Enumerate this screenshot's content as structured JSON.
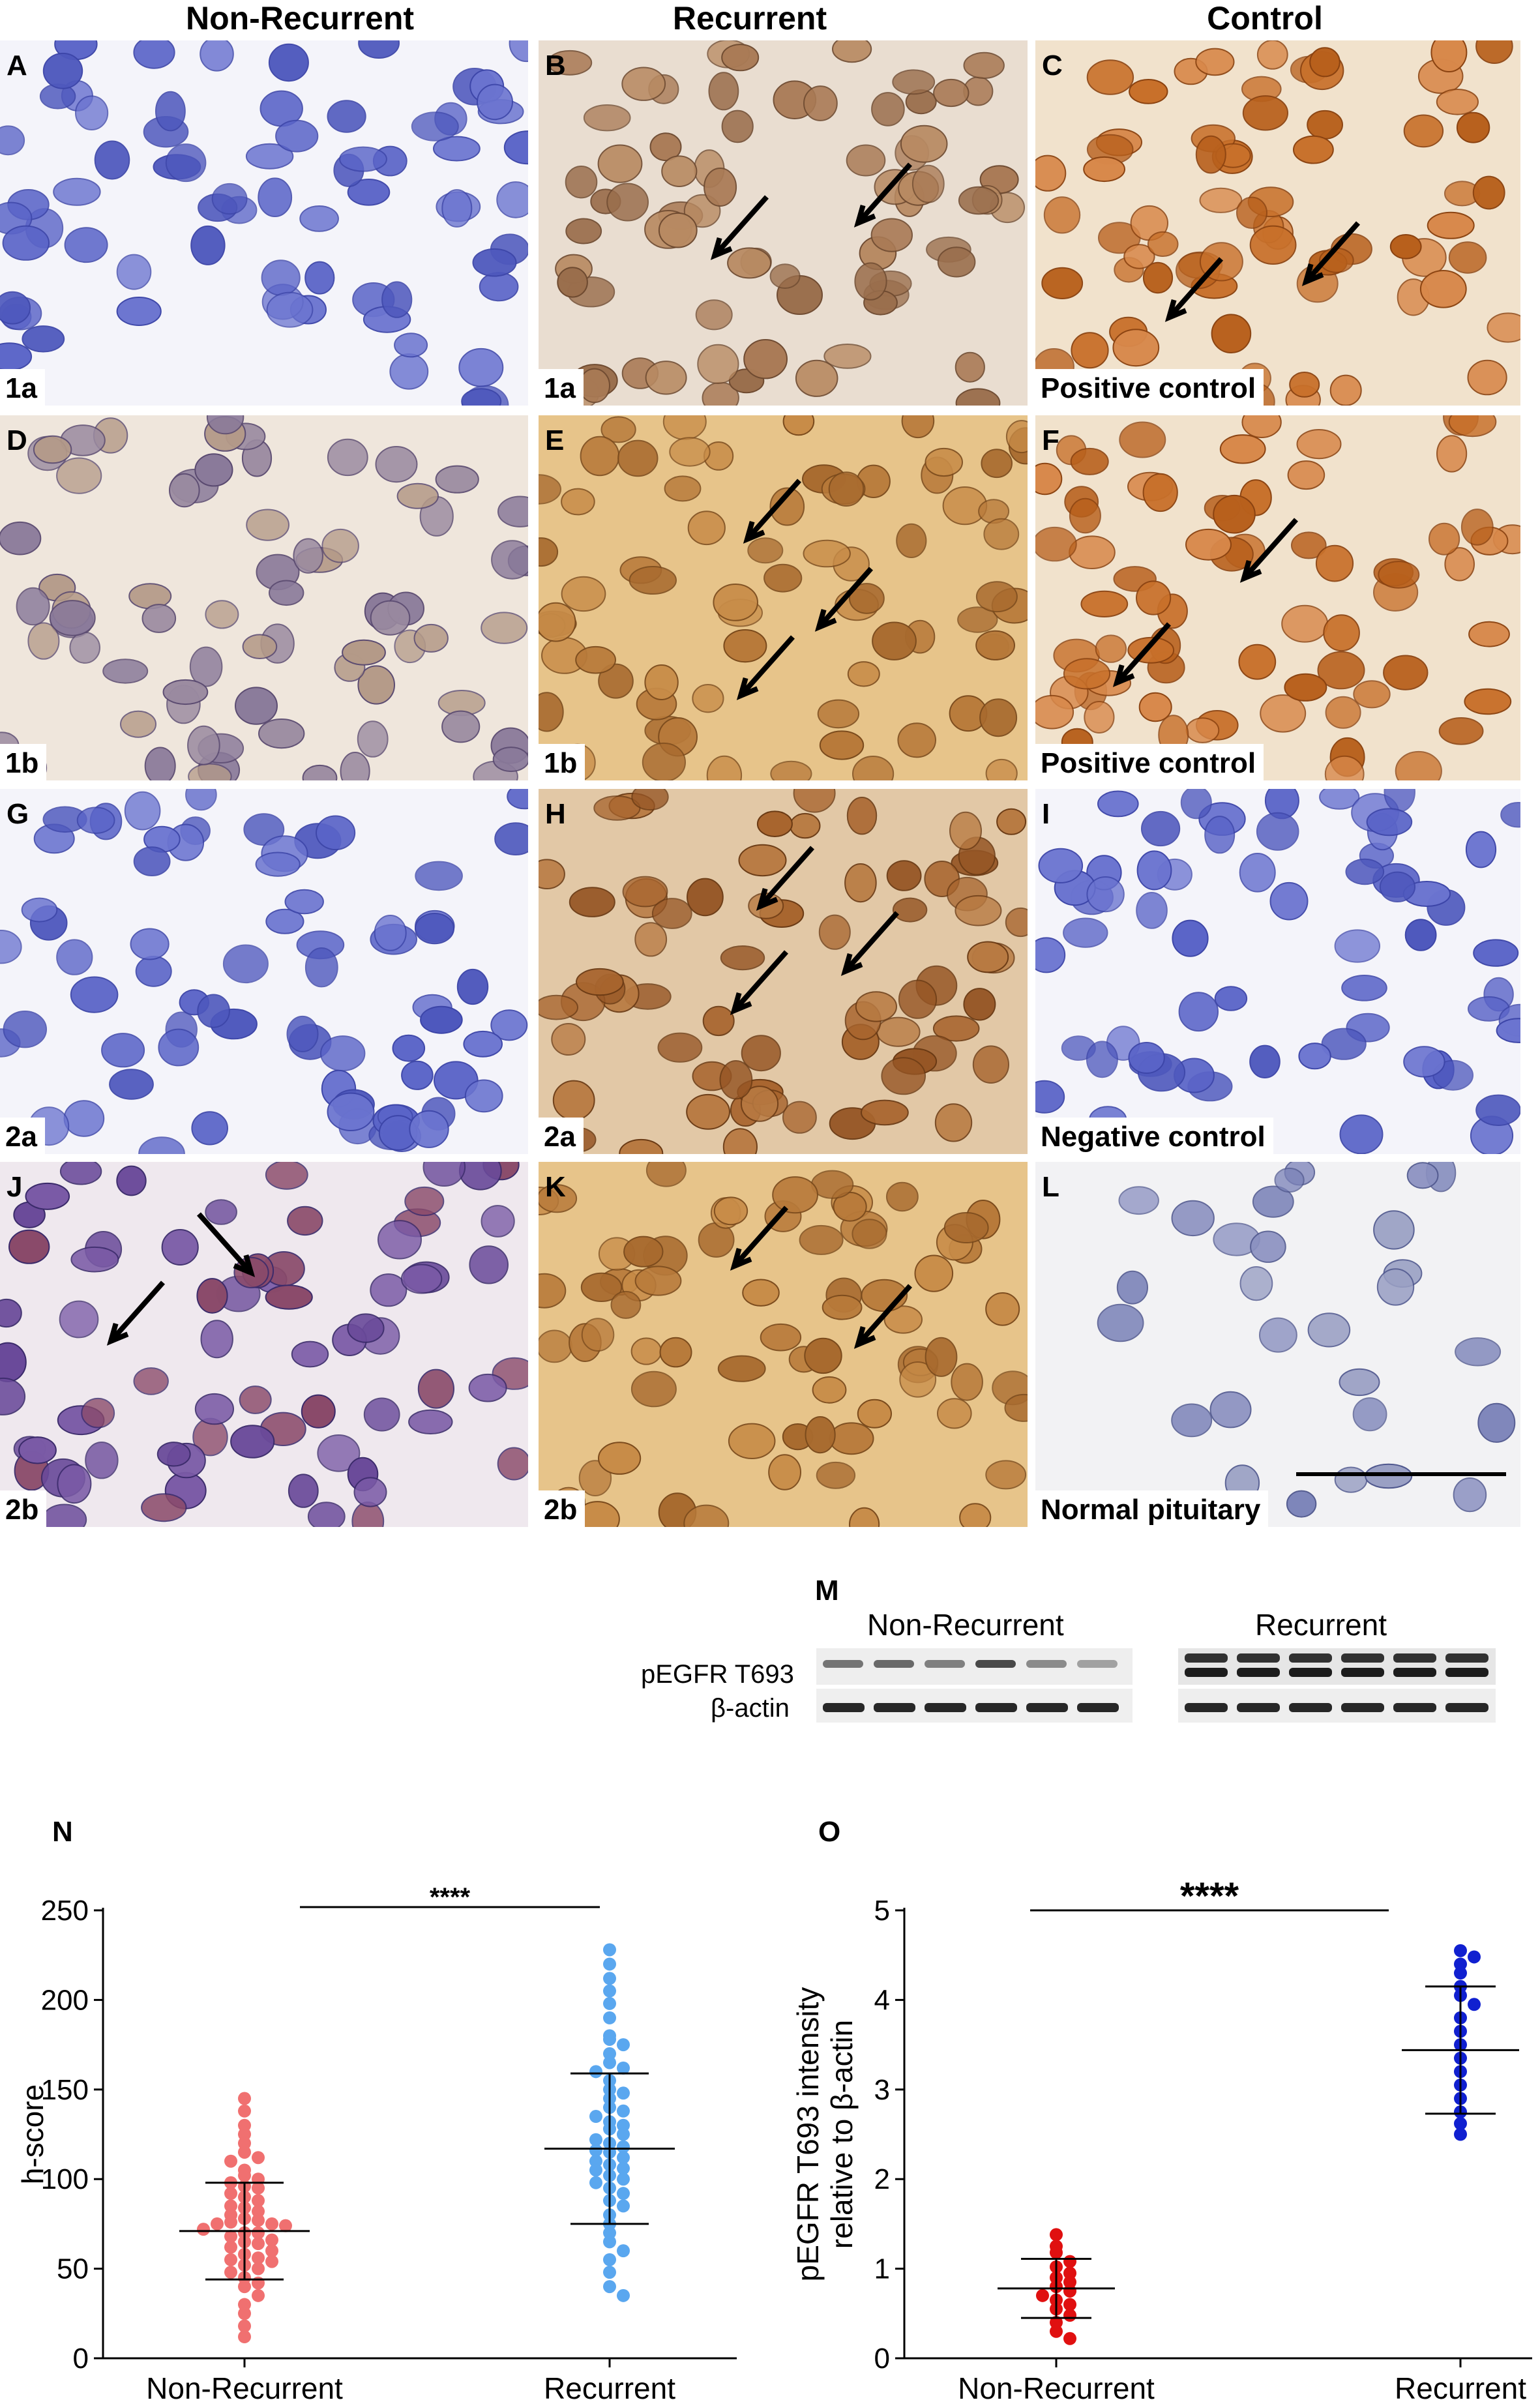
{
  "column_headers": [
    "Non-Recurrent",
    "Recurrent",
    "Control"
  ],
  "panels": [
    {
      "letter": "A",
      "sublabel": "1a",
      "tone": "blue"
    },
    {
      "letter": "B",
      "sublabel": "1a",
      "tone": "lightbrown"
    },
    {
      "letter": "C",
      "sublabel": "Positive control",
      "tone": "brown"
    },
    {
      "letter": "D",
      "sublabel": "1b",
      "tone": "mixed"
    },
    {
      "letter": "E",
      "sublabel": "1b",
      "tone": "yellowbrown"
    },
    {
      "letter": "F",
      "sublabel": "Positive control",
      "tone": "brown"
    },
    {
      "letter": "G",
      "sublabel": "2a",
      "tone": "blue"
    },
    {
      "letter": "H",
      "sublabel": "2a",
      "tone": "darkbrown"
    },
    {
      "letter": "I",
      "sublabel": "Negative control",
      "tone": "blue"
    },
    {
      "letter": "J",
      "sublabel": "2b",
      "tone": "purple"
    },
    {
      "letter": "K",
      "sublabel": "2b",
      "tone": "yellowbrown"
    },
    {
      "letter": "L",
      "sublabel": "Normal pituitary",
      "tone": "pale"
    }
  ],
  "blot": {
    "label": "M",
    "groups": [
      "Non-Recurrent",
      "Recurrent"
    ],
    "rows": [
      "pEGFR T693",
      "β-actin"
    ]
  },
  "plot_n": {
    "label": "N",
    "significance": "****",
    "ylabel": "h-score",
    "yticks": [
      "0",
      "50",
      "100",
      "150",
      "200",
      "250"
    ],
    "categories": [
      "Non-Recurrent",
      "Recurrent"
    ],
    "colors": {
      "non_recurrent": "#f07070",
      "recurrent": "#5aa7ef"
    }
  },
  "plot_o": {
    "label": "O",
    "significance": "****",
    "ylabel_line1": "pEGFR T693 intensity",
    "ylabel_line2": "relative to β-actin",
    "yticks": [
      "0",
      "1",
      "2",
      "3",
      "4",
      "5"
    ],
    "categories": [
      "Non-Recurrent",
      "Recurrent"
    ],
    "colors": {
      "non_recurrent": "#e01010",
      "recurrent": "#1020d0"
    }
  },
  "chart_data": [
    {
      "type": "scatter",
      "ylabel": "h-score",
      "ylim": [
        0,
        250
      ],
      "categories": [
        "Non-Recurrent",
        "Recurrent"
      ],
      "series": [
        {
          "name": "Non-Recurrent",
          "mean": 71,
          "sd": 27,
          "values": [
            145,
            138,
            130,
            125,
            120,
            115,
            112,
            110,
            105,
            102,
            100,
            98,
            96,
            95,
            92,
            90,
            88,
            85,
            84,
            82,
            80,
            78,
            77,
            76,
            75,
            75,
            74,
            72,
            70,
            70,
            68,
            66,
            65,
            64,
            62,
            60,
            58,
            56,
            55,
            54,
            52,
            50,
            48,
            45,
            42,
            40,
            35,
            30,
            25,
            18,
            12
          ]
        },
        {
          "name": "Recurrent",
          "mean": 117,
          "sd": 42,
          "values": [
            228,
            220,
            212,
            205,
            198,
            190,
            180,
            178,
            175,
            170,
            165,
            162,
            160,
            155,
            150,
            148,
            145,
            140,
            138,
            135,
            132,
            130,
            128,
            125,
            122,
            120,
            118,
            116,
            115,
            112,
            110,
            108,
            106,
            105,
            102,
            100,
            98,
            95,
            92,
            88,
            85,
            80,
            75,
            70,
            65,
            60,
            55,
            48,
            40,
            35
          ]
        }
      ]
    },
    {
      "type": "scatter",
      "ylabel": "pEGFR T693 intensity relative to β-actin",
      "ylim": [
        0,
        5
      ],
      "categories": [
        "Non-Recurrent",
        "Recurrent"
      ],
      "series": [
        {
          "name": "Non-Recurrent",
          "mean": 0.78,
          "sd": 0.33,
          "values": [
            1.38,
            1.25,
            1.18,
            1.08,
            1.02,
            0.95,
            0.9,
            0.85,
            0.8,
            0.75,
            0.7,
            0.65,
            0.6,
            0.55,
            0.48,
            0.4,
            0.3,
            0.22
          ]
        },
        {
          "name": "Recurrent",
          "mean": 3.44,
          "sd": 0.71,
          "values": [
            4.55,
            4.48,
            4.4,
            4.3,
            4.15,
            4.05,
            3.95,
            3.8,
            3.65,
            3.5,
            3.35,
            3.2,
            3.05,
            2.9,
            2.75,
            2.62,
            2.5
          ]
        }
      ]
    }
  ]
}
